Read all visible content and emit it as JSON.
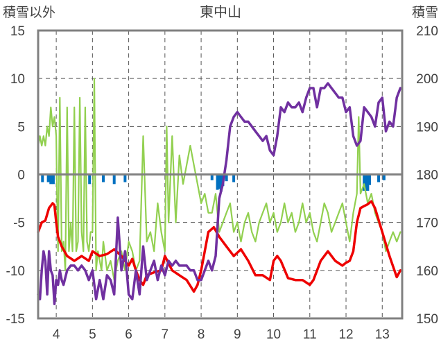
{
  "chart_data": {
    "type": "line",
    "title": "東中山",
    "left_axis_label": "積雪以外",
    "right_axis_label": "積雪",
    "x_ticks": [
      "4",
      "5",
      "6",
      "7",
      "8",
      "9",
      "10",
      "11",
      "12",
      "13"
    ],
    "x_range": [
      3.5,
      13.55
    ],
    "y_left": {
      "range": [
        -15,
        15
      ],
      "ticks": [
        "15",
        "10",
        "5",
        "0",
        "-5",
        "-10",
        "-15"
      ]
    },
    "y_right": {
      "range": [
        150,
        210
      ],
      "ticks": [
        "210",
        "200",
        "190",
        "180",
        "170",
        "160",
        "150"
      ]
    },
    "grid": true,
    "colors": {
      "red": "#ee0000",
      "green": "#92d050",
      "purple": "#7030a0",
      "blue": "#0070c0",
      "frame": "#808080",
      "grid": "#555555"
    },
    "series": [
      {
        "color": "red",
        "axis": "left",
        "x": [
          3.5,
          3.6,
          3.7,
          3.8,
          3.9,
          3.95,
          4.0,
          4.05,
          4.15,
          4.3,
          4.5,
          4.7,
          4.9,
          5.0,
          5.2,
          5.4,
          5.6,
          5.8,
          6.0,
          6.1,
          6.2,
          6.3,
          6.4,
          6.5,
          6.7,
          6.9,
          7.0,
          7.2,
          7.4,
          7.6,
          7.8,
          7.9,
          8.0,
          8.1,
          8.2,
          8.35,
          8.5,
          8.7,
          8.9,
          9.1,
          9.3,
          9.5,
          9.7,
          9.9,
          10.0,
          10.1,
          10.2,
          10.4,
          10.6,
          10.8,
          11.0,
          11.1,
          11.3,
          11.5,
          11.7,
          11.9,
          12.0,
          12.1,
          12.2,
          12.3,
          12.4,
          12.5,
          12.6,
          12.7,
          12.8,
          13.0,
          13.2,
          13.4,
          13.5
        ],
        "y": [
          -6,
          -5,
          -4.8,
          -3.5,
          -3,
          -3.2,
          -5,
          -6.5,
          -7.5,
          -8.5,
          -9,
          -8.5,
          -9,
          -8,
          -8.5,
          -8.3,
          -7.8,
          -8.5,
          -9.5,
          -8.8,
          -10,
          -11,
          -11.5,
          -10.5,
          -10.2,
          -10,
          -8.5,
          -10,
          -10.5,
          -11,
          -12.2,
          -11.5,
          -10,
          -8,
          -6,
          -5.5,
          -6.5,
          -7.5,
          -8.5,
          -7.8,
          -9,
          -10.5,
          -10.5,
          -11,
          -9,
          -8.5,
          -9,
          -10.8,
          -11,
          -11,
          -11.5,
          -11,
          -9,
          -8,
          -9,
          -9.5,
          -9.2,
          -9,
          -8,
          -5,
          -3.5,
          -3.3,
          -3.1,
          -2.8,
          -3.5,
          -6,
          -8.5,
          -10.7,
          -10
        ]
      },
      {
        "color": "green",
        "axis": "left",
        "x": [
          3.5,
          3.55,
          3.6,
          3.65,
          3.7,
          3.75,
          3.8,
          3.85,
          3.9,
          3.95,
          4.0,
          4.02,
          4.05,
          4.1,
          4.15,
          4.2,
          4.25,
          4.3,
          4.35,
          4.4,
          4.45,
          4.5,
          4.55,
          4.6,
          4.65,
          4.7,
          4.75,
          4.8,
          4.85,
          4.9,
          4.95,
          5.0,
          5.05,
          5.1,
          5.15,
          5.2,
          5.25,
          5.3,
          5.4,
          5.5,
          5.6,
          5.7,
          5.8,
          5.9,
          6.0,
          6.1,
          6.2,
          6.3,
          6.4,
          6.5,
          6.6,
          6.7,
          6.8,
          6.9,
          7.0,
          7.05,
          7.1,
          7.2,
          7.3,
          7.4,
          7.5,
          7.6,
          7.7,
          7.8,
          7.9,
          8.0,
          8.1,
          8.2,
          8.3,
          8.4,
          8.5,
          8.6,
          8.7,
          8.8,
          8.9,
          9.0,
          9.1,
          9.2,
          9.3,
          9.4,
          9.5,
          9.6,
          9.7,
          9.8,
          9.9,
          10.0,
          10.1,
          10.2,
          10.3,
          10.4,
          10.5,
          10.6,
          10.7,
          10.8,
          10.9,
          11.0,
          11.1,
          11.2,
          11.3,
          11.4,
          11.5,
          11.6,
          11.7,
          11.8,
          11.9,
          12.0,
          12.1,
          12.2,
          12.3,
          12.35,
          12.4,
          12.5,
          12.6,
          12.7,
          12.8,
          12.9,
          13.0,
          13.1,
          13.2,
          13.3,
          13.4,
          13.5
        ],
        "y": [
          3,
          4,
          3,
          4,
          3,
          5,
          4,
          7,
          5,
          6,
          4,
          -2,
          -8,
          8,
          -8,
          -7,
          -10,
          7,
          -8,
          -5,
          -8,
          7,
          -8,
          -7,
          8,
          -6,
          -8,
          7,
          -7,
          -8,
          -6,
          -6,
          10,
          -10,
          -8,
          -9,
          -10,
          -7,
          -10,
          -9,
          -11,
          -9,
          -8,
          -10,
          -7,
          -8,
          -10,
          -9,
          4,
          -7,
          -6,
          -8,
          -3,
          -6,
          -8,
          5,
          -5,
          4,
          -5,
          2,
          -1,
          1,
          3,
          1,
          -1,
          -3,
          -2,
          -4,
          -4,
          -2,
          -6,
          -5,
          -4,
          -3,
          -6,
          -5,
          -7,
          -5,
          -4,
          -6,
          -7,
          -5,
          -4,
          -3,
          -5,
          -4,
          -6,
          -5,
          -3,
          -5,
          -4,
          -6,
          -5,
          -3,
          -5,
          -4,
          -6,
          -7,
          -5,
          -3,
          -4,
          -6,
          -5,
          -4,
          -3,
          -5,
          -7,
          -4,
          -2,
          6,
          -2,
          -1,
          -3,
          -2,
          -4,
          -5,
          -6,
          -8,
          -7,
          -6,
          -7,
          -6
        ]
      },
      {
        "color": "purple",
        "axis": "right",
        "x": [
          3.5,
          3.55,
          3.6,
          3.65,
          3.7,
          3.75,
          3.8,
          3.85,
          3.9,
          3.95,
          4.0,
          4.05,
          4.1,
          4.15,
          4.2,
          4.3,
          4.4,
          4.5,
          4.6,
          4.7,
          4.8,
          4.9,
          5.0,
          5.1,
          5.2,
          5.3,
          5.4,
          5.5,
          5.6,
          5.7,
          5.8,
          5.9,
          6.0,
          6.1,
          6.2,
          6.3,
          6.4,
          6.5,
          6.6,
          6.7,
          6.8,
          6.9,
          7.0,
          7.1,
          7.2,
          7.3,
          7.4,
          7.5,
          7.6,
          7.7,
          7.8,
          7.9,
          8.0,
          8.1,
          8.2,
          8.3,
          8.4,
          8.5,
          8.6,
          8.7,
          8.8,
          8.9,
          9.0,
          9.1,
          9.2,
          9.3,
          9.4,
          9.5,
          9.6,
          9.7,
          9.8,
          9.9,
          10.0,
          10.1,
          10.2,
          10.3,
          10.4,
          10.5,
          10.6,
          10.7,
          10.8,
          10.9,
          11.0,
          11.1,
          11.2,
          11.3,
          11.4,
          11.5,
          11.6,
          11.7,
          11.8,
          11.9,
          12.0,
          12.1,
          12.2,
          12.3,
          12.4,
          12.5,
          12.6,
          12.7,
          12.8,
          12.9,
          13.0,
          13.1,
          13.2,
          13.3,
          13.4,
          13.5
        ],
        "y": [
          155,
          154,
          160,
          164,
          162,
          155,
          164,
          160,
          159,
          153,
          158,
          157,
          160,
          158,
          157,
          160,
          161,
          161,
          160,
          161,
          160,
          158,
          160,
          154,
          158,
          154,
          159,
          158,
          155,
          171,
          160,
          164,
          155,
          154,
          160,
          155,
          165,
          158,
          160,
          162,
          158,
          161,
          159,
          162,
          161,
          162,
          161,
          161,
          161,
          160,
          160,
          158,
          158,
          160,
          162,
          160,
          163,
          175,
          178,
          183,
          190,
          192,
          193,
          192,
          191,
          191,
          190,
          189,
          188,
          187,
          188,
          185,
          184,
          188,
          194,
          193,
          195,
          194,
          194,
          195,
          193,
          196,
          198,
          198,
          194,
          198,
          198,
          199,
          198,
          197,
          196,
          196,
          193,
          194,
          188,
          186,
          187,
          194,
          193,
          192,
          190,
          195,
          196,
          189,
          191,
          190,
          196,
          198
        ]
      },
      {
        "color": "blue",
        "axis": "left",
        "type": "bar",
        "x": [
          3.62,
          3.78,
          3.85,
          3.92,
          4.92,
          5.3,
          5.6,
          5.9,
          8.3,
          8.45,
          8.5,
          8.55,
          8.6,
          8.7,
          8.9,
          12.5,
          12.55,
          12.6,
          12.65,
          12.9,
          13.05
        ],
        "y": [
          -0.8,
          -0.8,
          -1.0,
          -1.0,
          -1.0,
          -0.8,
          -1.0,
          -0.8,
          -0.6,
          -1.6,
          -1.5,
          -1.8,
          -1.2,
          -0.7,
          -0.8,
          -1.7,
          -1.7,
          -1.7,
          -1.1,
          -0.8,
          -0.6
        ]
      }
    ]
  }
}
